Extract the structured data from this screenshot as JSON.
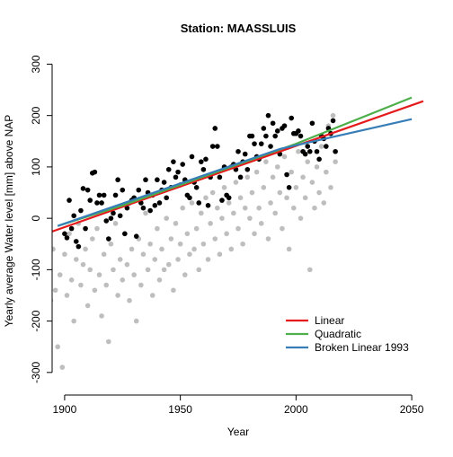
{
  "chart_data": {
    "type": "scatter",
    "title": "Station:  MAASSLUIS",
    "xlabel": "Year",
    "ylabel": "Yearly average Water level [mm] above NAP",
    "xlim": [
      1894.6,
      2055.4
    ],
    "ylim": [
      -330,
      320
    ],
    "xticks": [
      1900,
      1950,
      2000,
      2050
    ],
    "yticks": [
      -300,
      -200,
      -100,
      0,
      100,
      200,
      300
    ],
    "legend_position": "bottomright",
    "points": [
      {
        "color": "#bebebe",
        "x": [
          1890,
          1891,
          1892,
          1893,
          1894,
          1895,
          1896,
          1897,
          1898,
          1899,
          1900,
          1901,
          1902,
          1903,
          1904,
          1905,
          1906,
          1907,
          1908,
          1909,
          1910,
          1911,
          1912,
          1913,
          1914,
          1915,
          1916,
          1917,
          1918,
          1919,
          1920,
          1921,
          1922,
          1923,
          1924,
          1925,
          1926,
          1927,
          1928,
          1929,
          1930,
          1931,
          1932,
          1933,
          1934,
          1935,
          1936,
          1937,
          1938,
          1939,
          1940,
          1941,
          1942,
          1943,
          1944,
          1945,
          1946,
          1947,
          1948,
          1949,
          1950,
          1951,
          1952,
          1953,
          1954,
          1955,
          1956,
          1957,
          1958,
          1959,
          1960,
          1961,
          1962,
          1963,
          1964,
          1965,
          1966,
          1967,
          1968,
          1969,
          1970,
          1971,
          1972,
          1973,
          1974,
          1975,
          1976,
          1977,
          1978,
          1979,
          1980,
          1981,
          1982,
          1983,
          1984,
          1985,
          1986,
          1987,
          1988,
          1989,
          1990,
          1991,
          1992,
          1993,
          1994,
          1995,
          1996,
          1997,
          1998,
          1999,
          2000,
          2001,
          2002,
          2003,
          2004,
          2005,
          2006,
          2007,
          2008,
          2009,
          2010,
          2011,
          2012,
          2013,
          2014,
          2015,
          2016,
          2017
        ],
        "values": [
          -180,
          -120,
          -200,
          -90,
          -160,
          -60,
          -140,
          -250,
          -110,
          -290,
          -70,
          -150,
          -30,
          -120,
          -200,
          -80,
          -10,
          -130,
          -90,
          -60,
          -170,
          -100,
          -40,
          -140,
          -20,
          -110,
          -190,
          -70,
          -130,
          -240,
          -50,
          -100,
          -10,
          -150,
          -80,
          -120,
          -30,
          -90,
          -160,
          -60,
          -110,
          -200,
          -40,
          -130,
          -70,
          10,
          -100,
          -50,
          -150,
          -80,
          -20,
          -120,
          -60,
          -100,
          0,
          -90,
          -40,
          -140,
          -10,
          -80,
          -50,
          20,
          -110,
          -30,
          -70,
          30,
          -60,
          -20,
          -100,
          10,
          -50,
          40,
          -80,
          -10,
          50,
          -40,
          20,
          -70,
          0,
          60,
          -30,
          30,
          -60,
          10,
          70,
          -20,
          40,
          -50,
          20,
          80,
          0,
          50,
          -30,
          90,
          20,
          -10,
          60,
          110,
          -40,
          30,
          80,
          10,
          100,
          50,
          -20,
          120,
          40,
          -60,
          90,
          20,
          60,
          130,
          0,
          80,
          40,
          110,
          -100,
          70,
          20,
          100,
          50,
          140,
          30,
          90,
          180,
          60,
          200,
          110
        ]
      },
      {
        "color": "#000000",
        "x": [
          1900,
          1901,
          1902,
          1903,
          1904,
          1905,
          1906,
          1907,
          1908,
          1909,
          1910,
          1911,
          1912,
          1913,
          1914,
          1915,
          1916,
          1917,
          1918,
          1919,
          1920,
          1921,
          1922,
          1923,
          1924,
          1925,
          1926,
          1927,
          1928,
          1929,
          1930,
          1931,
          1932,
          1933,
          1934,
          1935,
          1936,
          1937,
          1938,
          1939,
          1940,
          1941,
          1942,
          1943,
          1944,
          1945,
          1946,
          1947,
          1948,
          1949,
          1950,
          1951,
          1952,
          1953,
          1954,
          1955,
          1956,
          1957,
          1958,
          1959,
          1960,
          1961,
          1962,
          1963,
          1964,
          1965,
          1966,
          1967,
          1968,
          1969,
          1970,
          1971,
          1972,
          1973,
          1974,
          1975,
          1976,
          1977,
          1978,
          1979,
          1980,
          1981,
          1982,
          1983,
          1984,
          1985,
          1986,
          1987,
          1988,
          1989,
          1990,
          1991,
          1992,
          1993,
          1994,
          1995,
          1996,
          1997,
          1998,
          1999,
          2000,
          2001,
          2002,
          2003,
          2004,
          2005,
          2006,
          2007,
          2008,
          2009,
          2010,
          2011,
          2012,
          2013,
          2014,
          2015,
          2016,
          2017
        ],
        "values": [
          -30,
          -38,
          35,
          -20,
          5,
          -45,
          -55,
          15,
          58,
          -20,
          55,
          35,
          88,
          90,
          30,
          45,
          30,
          45,
          -5,
          -40,
          0,
          10,
          45,
          75,
          5,
          55,
          -30,
          20,
          30,
          35,
          40,
          -35,
          55,
          30,
          20,
          75,
          50,
          15,
          45,
          25,
          75,
          30,
          55,
          70,
          40,
          95,
          60,
          110,
          80,
          90,
          65,
          105,
          75,
          45,
          40,
          120,
          70,
          60,
          30,
          110,
          95,
          115,
          25,
          80,
          140,
          175,
          140,
          80,
          35,
          100,
          45,
          40,
          100,
          105,
          95,
          130,
          80,
          110,
          125,
          95,
          160,
          160,
          145,
          120,
          115,
          145,
          175,
          160,
          200,
          140,
          185,
          160,
          170,
          125,
          175,
          180,
          85,
          60,
          195,
          165,
          165,
          170,
          160,
          130,
          125,
          140,
          130,
          185,
          150,
          130,
          115,
          160,
          155,
          140,
          175,
          165,
          190,
          130
        ]
      }
    ],
    "series": [
      {
        "name": "Linear",
        "color": "#e41a1c",
        "x": [
          1890,
          2055
        ],
        "values": [
          -33,
          228
        ]
      },
      {
        "name": "Quadratic",
        "color": "#4daf4a",
        "x": [
          1897,
          1925,
          1950,
          1975,
          2000,
          2025,
          2050
        ],
        "values": [
          -15,
          25,
          65,
          105,
          145,
          190,
          235
        ]
      },
      {
        "name": "Broken Linear 1993",
        "color": "#377eb8",
        "x": [
          1897,
          1993,
          2050
        ],
        "values": [
          -15,
          135,
          193
        ]
      }
    ]
  }
}
